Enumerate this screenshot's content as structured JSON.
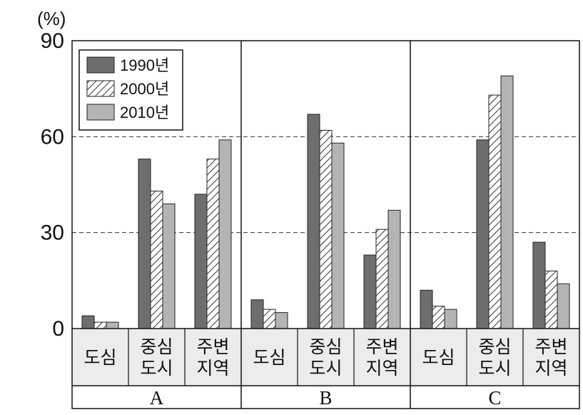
{
  "chart_data": {
    "type": "bar",
    "unit_label": "(%)",
    "title": "",
    "xlabel": "",
    "ylabel": "",
    "ylim": [
      0,
      90
    ],
    "yticks": [
      0,
      30,
      60,
      90
    ],
    "gridlines": "dashed at 30 and 60",
    "legend_position": "top-left",
    "groups": [
      {
        "label": "A",
        "categories": [
          {
            "lines": [
              "도심"
            ],
            "values": [
              4,
              2,
              2
            ]
          },
          {
            "lines": [
              "중심",
              "도시"
            ],
            "values": [
              53,
              43,
              39
            ]
          },
          {
            "lines": [
              "주변",
              "지역"
            ],
            "values": [
              42,
              53,
              59
            ]
          }
        ]
      },
      {
        "label": "B",
        "categories": [
          {
            "lines": [
              "도심"
            ],
            "values": [
              9,
              6,
              5
            ]
          },
          {
            "lines": [
              "중심",
              "도시"
            ],
            "values": [
              67,
              62,
              58
            ]
          },
          {
            "lines": [
              "주변",
              "지역"
            ],
            "values": [
              23,
              31,
              37
            ]
          }
        ]
      },
      {
        "label": "C",
        "categories": [
          {
            "lines": [
              "도심"
            ],
            "values": [
              12,
              7,
              6
            ]
          },
          {
            "lines": [
              "중심",
              "도시"
            ],
            "values": [
              59,
              73,
              79
            ]
          },
          {
            "lines": [
              "주변",
              "지역"
            ],
            "values": [
              27,
              18,
              14
            ]
          }
        ]
      }
    ],
    "series": [
      {
        "name": "1990년",
        "color": "#6e6e6e",
        "pattern": "solid"
      },
      {
        "name": "2000년",
        "color": "#ffffff",
        "pattern": "diagonal-hatch"
      },
      {
        "name": "2010년",
        "color": "#b4b4b4",
        "pattern": "solid"
      }
    ]
  }
}
